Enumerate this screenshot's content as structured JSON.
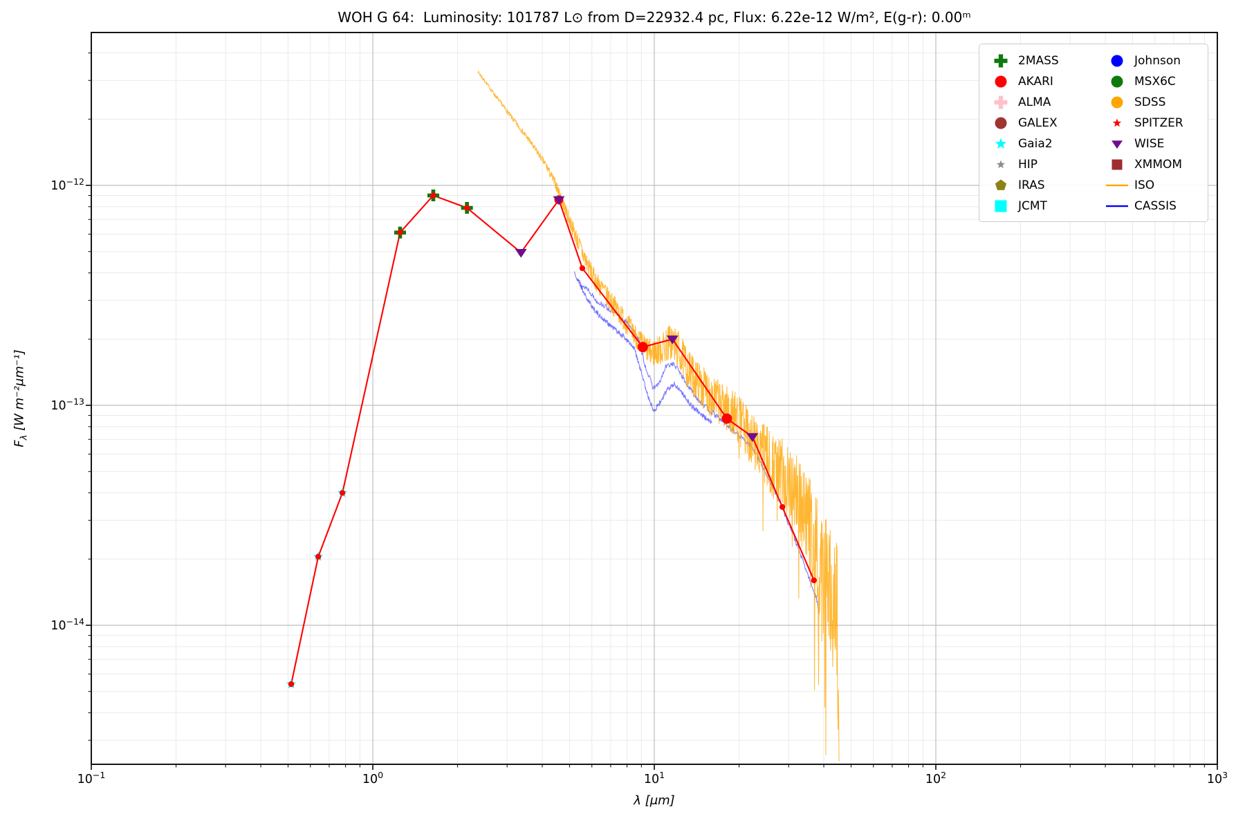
{
  "title": "WOH G 64:  Luminosity: 101787 L⊙ from D=22932.4 pc, Flux: 6.22e-12 W/m², E(g-r): 0.00ᵐ",
  "axes": {
    "xlabel": "λ [μm]",
    "ylabel_f": "F",
    "ylabel_sub": "λ",
    "ylabel_units": " [W m⁻²μm⁻¹]",
    "x_scale": "log",
    "y_scale": "log",
    "xlim": [
      0.1,
      1000
    ],
    "ylim": [
      2.3e-15,
      5e-12
    ],
    "grid": true,
    "x_ticks": [
      {
        "value": 0.1,
        "base": "10",
        "exp": "−1"
      },
      {
        "value": 1,
        "base": "10",
        "exp": "0"
      },
      {
        "value": 10,
        "base": "10",
        "exp": "1"
      },
      {
        "value": 100,
        "base": "10",
        "exp": "2"
      },
      {
        "value": 1000,
        "base": "10",
        "exp": "3"
      }
    ],
    "y_ticks": [
      {
        "value": 1e-12,
        "base": "10",
        "exp": "−12"
      },
      {
        "value": 1e-13,
        "base": "10",
        "exp": "−13"
      },
      {
        "value": 1e-14,
        "base": "10",
        "exp": "−14"
      }
    ]
  },
  "colors": {
    "sed_line": "#ff0000",
    "iso": "#ffa500",
    "cassis": "#0000ff",
    "grid_major": "#bdbdbd",
    "grid_minor": "#eaeaea",
    "spine": "#141414"
  },
  "legend": {
    "columns": [
      [
        {
          "label": "2MASS",
          "marker": "thick-plus",
          "color": "#0e7a0e"
        },
        {
          "label": "AKARI",
          "marker": "circle",
          "color": "#ff0000"
        },
        {
          "label": "ALMA",
          "marker": "thick-plus",
          "color": "#ffc0cb"
        },
        {
          "label": "GALEX",
          "marker": "circle",
          "color": "#a03430"
        },
        {
          "label": "Gaia2",
          "marker": "star",
          "color": "#00ffff"
        },
        {
          "label": "HIP",
          "marker": "star-small",
          "color": "#8c8c8c"
        },
        {
          "label": "IRAS",
          "marker": "pentagon",
          "color": "#8c8214"
        },
        {
          "label": "JCMT",
          "marker": "square",
          "color": "#00ffff"
        }
      ],
      [
        {
          "label": "Johnson",
          "marker": "circle",
          "color": "#0000ff"
        },
        {
          "label": "MSX6C",
          "marker": "circle",
          "color": "#0e7a0e"
        },
        {
          "label": "SDSS",
          "marker": "circle",
          "color": "#ffa500"
        },
        {
          "label": "SPITZER",
          "marker": "star-small",
          "color": "#ff0000"
        },
        {
          "label": "WISE",
          "marker": "triangle-down",
          "color": "#700d8c"
        },
        {
          "label": "XMMOM",
          "marker": "square-small",
          "color": "#9e2c30"
        },
        {
          "label": "ISO",
          "marker": "line",
          "color": "#ffa500"
        },
        {
          "label": "CASSIS",
          "marker": "line",
          "color": "#0000ff"
        }
      ]
    ]
  },
  "chart_data": {
    "type": "scatter",
    "subtype": "spectral-energy-distribution",
    "title": "WOH G 64 SED",
    "xlabel": "lambda [micron]",
    "ylabel": "F_lambda [W m^-2 micron^-1]",
    "sed_line_points": [
      [
        0.513,
        5.4e-15
      ],
      [
        0.64,
        2.05e-14
      ],
      [
        0.78,
        4e-14
      ],
      [
        1.25,
        6.1e-13
      ],
      [
        1.64,
        9e-13
      ],
      [
        2.16,
        7.9e-13
      ],
      [
        3.36,
        4.95e-13
      ],
      [
        4.58,
        8.6e-13
      ],
      [
        5.55,
        4.2e-13
      ],
      [
        9.1,
        1.84e-13
      ],
      [
        11.6,
        2e-13
      ],
      [
        18.1,
        8.7e-14
      ],
      [
        22.3,
        7.2e-14
      ],
      [
        28.5,
        3.45e-14
      ],
      [
        36.9,
        1.6e-14
      ]
    ],
    "photometry": [
      {
        "name": "Gaia2",
        "marker": "star",
        "color": "#00ffff",
        "size": 15,
        "points": [
          [
            0.513,
            5.4e-15
          ],
          [
            0.64,
            2.05e-14
          ],
          [
            0.78,
            4e-14
          ]
        ]
      },
      {
        "name": "2MASS",
        "marker": "thick-plus",
        "color": "#0e7a0e",
        "size": 17,
        "points": [
          [
            1.25,
            6.1e-13
          ],
          [
            1.64,
            9e-13
          ],
          [
            2.16,
            7.9e-13
          ]
        ]
      },
      {
        "name": "AKARI",
        "marker": "circle",
        "color": "#ff0000",
        "size": 15,
        "points": [
          [
            9.1,
            1.84e-13
          ],
          [
            18.1,
            8.7e-14
          ]
        ]
      },
      {
        "name": "WISE",
        "marker": "triangle-down",
        "color": "#700d8c",
        "size": 17,
        "points": [
          [
            3.36,
            4.95e-13
          ],
          [
            4.58,
            8.6e-13
          ],
          [
            11.6,
            2e-13
          ],
          [
            22.3,
            7.2e-14
          ]
        ]
      }
    ],
    "iso_spectrum": {
      "name": "ISO",
      "seed": 7,
      "anchors_lambda_flux_noisedex": [
        [
          2.36,
          3.3e-12,
          0.006
        ],
        [
          2.7,
          2.6e-12,
          0.008
        ],
        [
          3.1,
          2.05e-12,
          0.01
        ],
        [
          3.6,
          1.6e-12,
          0.012
        ],
        [
          4.1,
          1.25e-12,
          0.015
        ],
        [
          4.45,
          1.02e-12,
          0.022
        ],
        [
          4.75,
          8.2e-13,
          0.03
        ],
        [
          5.1,
          6.5e-13,
          0.035
        ],
        [
          5.6,
          4.8e-13,
          0.04
        ],
        [
          6.1,
          3.8e-13,
          0.045
        ],
        [
          6.7,
          3.2e-13,
          0.048
        ],
        [
          7.4,
          2.7e-13,
          0.05
        ],
        [
          8.2,
          2.25e-13,
          0.05
        ],
        [
          9.0,
          1.9e-13,
          0.055
        ],
        [
          9.8,
          1.72e-13,
          0.06
        ],
        [
          10.6,
          1.8e-13,
          0.07
        ],
        [
          11.4,
          1.95e-13,
          0.085
        ],
        [
          12.2,
          1.8e-13,
          0.085
        ],
        [
          13.2,
          1.45e-13,
          0.09
        ],
        [
          14.5,
          1.25e-13,
          0.095
        ],
        [
          16.0,
          1.1e-13,
          0.1
        ],
        [
          17.5,
          1e-13,
          0.1
        ],
        [
          19.0,
          9.2e-14,
          0.11
        ],
        [
          21.0,
          7.8e-14,
          0.12
        ],
        [
          23.0,
          6.6e-14,
          0.13
        ],
        [
          25.0,
          5.8e-14,
          0.145
        ],
        [
          27.0,
          5.2e-14,
          0.155
        ],
        [
          29.0,
          4.8e-14,
          0.165
        ],
        [
          31.0,
          4.4e-14,
          0.175
        ],
        [
          33.0,
          3.7e-14,
          0.19
        ],
        [
          35.0,
          3e-14,
          0.21
        ],
        [
          37.0,
          2.5e-14,
          0.23
        ],
        [
          39.0,
          2.1e-14,
          0.26
        ],
        [
          41.0,
          1.7e-14,
          0.29
        ],
        [
          43.0,
          1.35e-14,
          0.32
        ],
        [
          44.5,
          1.05e-14,
          0.35
        ],
        [
          45.3,
          8.5e-15,
          0.36
        ]
      ],
      "deep_spikes": [
        {
          "lambda": 44.8,
          "flux": 4e-15
        }
      ]
    },
    "cassis_spectra": [
      {
        "name": "CASSIS-a",
        "seed": 13,
        "noise_dex": 0.012,
        "points": [
          [
            5.2,
            4.05e-13
          ],
          [
            5.5,
            3.5e-13
          ],
          [
            5.8,
            3.4e-13
          ],
          [
            6.2,
            3e-13
          ],
          [
            6.6,
            2.85e-13
          ],
          [
            7.0,
            2.7e-13
          ],
          [
            7.6,
            2.5e-13
          ],
          [
            8.2,
            2.3e-13
          ],
          [
            8.8,
            2e-13
          ],
          [
            9.3,
            1.5e-13
          ],
          [
            9.9,
            1.2e-13
          ],
          [
            10.4,
            1.25e-13
          ],
          [
            11.0,
            1.5e-13
          ],
          [
            11.6,
            1.55e-13
          ],
          [
            12.2,
            1.45e-13
          ],
          [
            13.0,
            1.25e-13
          ],
          [
            14.0,
            1.1e-13
          ],
          [
            15.0,
            1e-13
          ],
          [
            16.5,
            9e-14
          ],
          [
            18.0,
            8.2e-14
          ],
          [
            20.0,
            7.3e-14
          ],
          [
            22.0,
            6.6e-14
          ],
          [
            24.0,
            5.4e-14
          ],
          [
            26.0,
            4.4e-14
          ],
          [
            28.0,
            3.6e-14
          ],
          [
            30.0,
            2.9e-14
          ],
          [
            32.0,
            2.35e-14
          ],
          [
            34.0,
            1.9e-14
          ],
          [
            36.0,
            1.55e-14
          ],
          [
            37.5,
            1.35e-14
          ],
          [
            38.5,
            1.15e-14
          ]
        ]
      },
      {
        "name": "CASSIS-b",
        "seed": 21,
        "noise_dex": 0.012,
        "points": [
          [
            5.3,
            3.8e-13
          ],
          [
            5.8,
            3e-13
          ],
          [
            6.3,
            2.6e-13
          ],
          [
            7.0,
            2.3e-13
          ],
          [
            7.8,
            2.05e-13
          ],
          [
            8.5,
            1.8e-13
          ],
          [
            9.0,
            1.4e-13
          ],
          [
            9.6,
            1.05e-13
          ],
          [
            10.0,
            9.5e-14
          ],
          [
            10.6,
            1.05e-13
          ],
          [
            11.2,
            1.2e-13
          ],
          [
            11.8,
            1.25e-13
          ],
          [
            12.5,
            1.15e-13
          ],
          [
            13.5,
            1e-13
          ],
          [
            14.5,
            9.2e-14
          ],
          [
            16.0,
            8.3e-14
          ]
        ]
      }
    ]
  }
}
